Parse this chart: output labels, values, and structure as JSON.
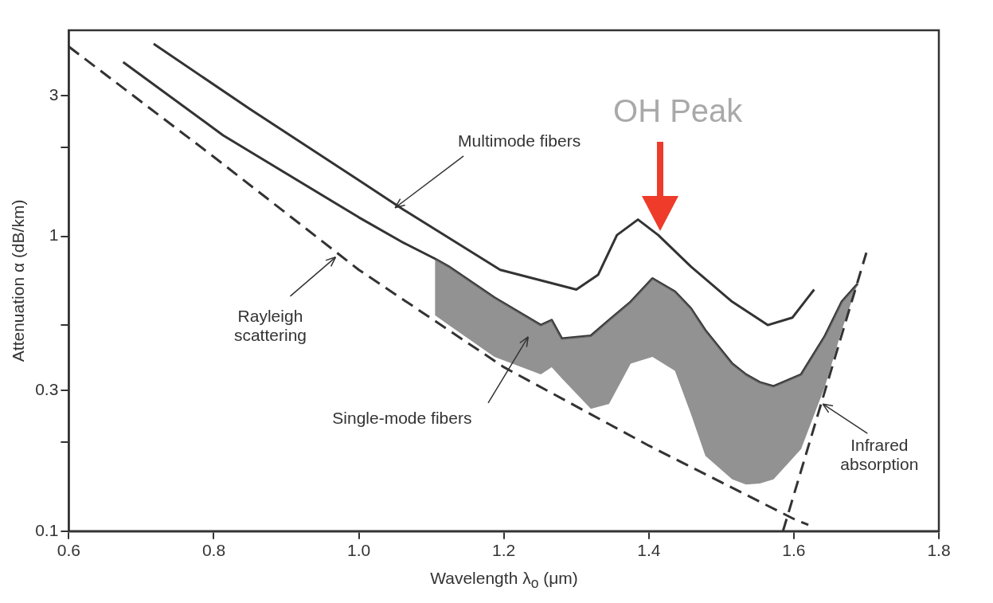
{
  "chart_data": {
    "type": "line",
    "xlabel": "Wavelength λ$_{o}$ (μm)",
    "ylabel": "Attenuation α (dB/km)",
    "xlim": [
      0.6,
      1.8
    ],
    "xticks": [
      0.6,
      0.8,
      {
        "value": 1,
        "label": "1.0"
      },
      1.2,
      1.4,
      1.6,
      1.8
    ],
    "ylim": [
      0.1,
      5
    ],
    "yticks": [
      0.1,
      {
        "value": 0.2,
        "label": null
      },
      0.3,
      {
        "value": 0.5,
        "label": null
      },
      1,
      {
        "value": 2,
        "label": null
      },
      3
    ],
    "log": "y",
    "grid": false,
    "legend": false,
    "marker": "none",
    "series": [
      {
        "color": "#333333",
        "line_style": "dashed",
        "x": [
          0.6,
          0.8,
          1.0,
          1.2,
          1.4,
          1.6,
          1.62
        ],
        "values": [
          4.4,
          1.86,
          0.77,
          0.36,
          0.195,
          0.11,
          0.105
        ]
      },
      {
        "color": "#333333",
        "line_style": "dashed",
        "x": [
          1.585,
          1.7
        ],
        "values": [
          0.1,
          0.88
        ]
      },
      {
        "color": "#333333",
        "line_style": "solid",
        "x": [
          0.717,
          0.85,
          1.0,
          1.062,
          1.195,
          1.3,
          1.33,
          1.356,
          1.385,
          1.413,
          1.458,
          1.515,
          1.564,
          1.598,
          1.628
        ],
        "values": [
          4.5,
          2.7,
          1.55,
          1.23,
          0.77,
          0.66,
          0.74,
          1.01,
          1.14,
          1.01,
          0.79,
          0.6,
          0.5,
          0.53,
          0.66
        ]
      },
      {
        "color": "#333333",
        "line_style": "solid",
        "x": [
          0.675,
          0.813,
          1.0,
          1.062,
          1.105,
          1.124,
          1.187,
          1.251,
          1.266,
          1.28,
          1.32,
          1.345,
          1.375,
          1.405,
          1.436,
          1.458,
          1.478,
          1.515,
          1.534,
          1.553,
          1.572,
          1.61,
          1.643,
          1.666,
          1.688
        ],
        "values": [
          3.9,
          2.2,
          1.16,
          0.95,
          0.84,
          0.79,
          0.62,
          0.5,
          0.52,
          0.45,
          0.46,
          0.52,
          0.6,
          0.72,
          0.65,
          0.57,
          0.48,
          0.37,
          0.34,
          0.32,
          0.31,
          0.34,
          0.46,
          0.6,
          0.69
        ],
        "upper": [
          null,
          null,
          null,
          null,
          0.84,
          0.79,
          0.62,
          0.5,
          0.52,
          0.45,
          0.46,
          0.52,
          0.6,
          0.72,
          0.65,
          0.57,
          0.48,
          0.37,
          0.34,
          0.32,
          0.31,
          0.34,
          0.46,
          0.6,
          0.69
        ],
        "lower": [
          null,
          null,
          null,
          null,
          0.54,
          0.5,
          0.39,
          0.34,
          0.36,
          0.33,
          0.26,
          0.27,
          0.37,
          0.39,
          0.35,
          0.25,
          0.18,
          0.15,
          0.144,
          0.145,
          0.15,
          0.19,
          0.31,
          0.48,
          0.69
        ]
      }
    ],
    "annotations": [
      "OH Peak",
      {
        "text": "Multimode fibers",
        "x": 1.05,
        "y": 1.25
      },
      {
        "text": "Rayleigh\nscattering",
        "x": 0.968,
        "y": 0.85
      },
      "Single-mode fibers",
      {
        "text": "Infrared\nabsorption",
        "x": 1.64,
        "y": 0.27
      }
    ]
  }
}
